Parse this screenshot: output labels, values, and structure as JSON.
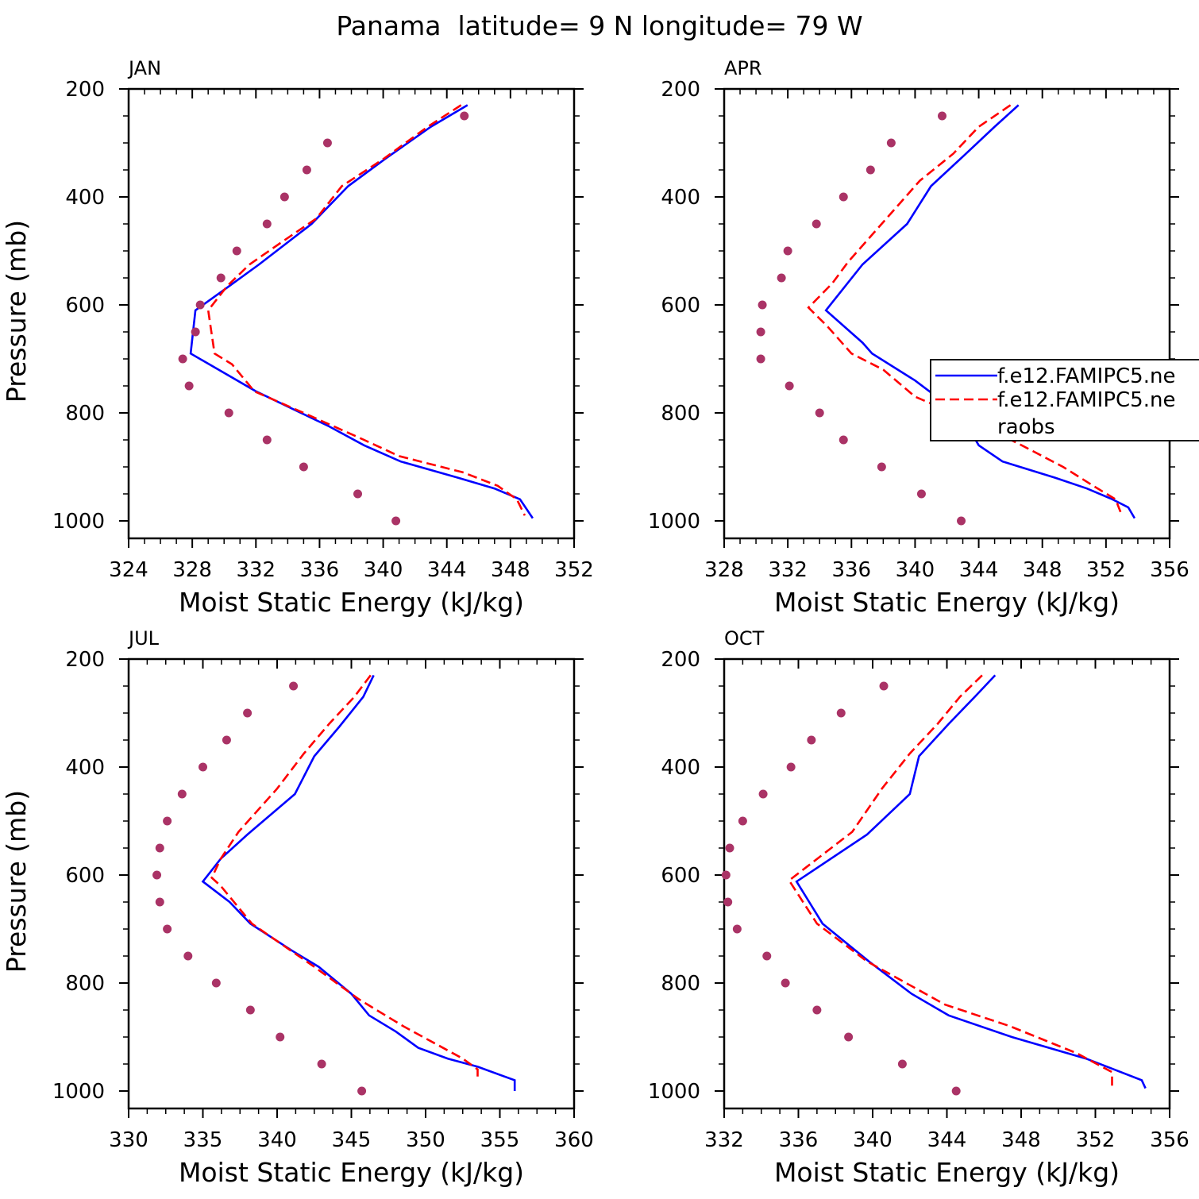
{
  "page_title": "Panama  latitude= 9 N longitude= 79 W",
  "legend": {
    "entries": [
      "f.e12.FAMIPC5.ne",
      "f.e12.FAMIPC5.ne",
      "raobs"
    ],
    "placement": "inside APR panel, right edge, clipped",
    "series_colors": [
      "#0000ff",
      "#ff0000",
      "#aa3366"
    ]
  },
  "chart_data": [
    {
      "type": "line",
      "title": "JAN",
      "xlabel": "Moist Static Energy (kJ/kg)",
      "ylabel": "Pressure (mb)",
      "xlim": [
        324,
        352
      ],
      "ylim": [
        1000,
        200
      ],
      "xticks": [
        324,
        328,
        332,
        336,
        340,
        344,
        348,
        352
      ],
      "yticks": [
        200,
        400,
        600,
        800,
        1000
      ],
      "series": [
        {
          "style": "solid",
          "color": "#0000ff",
          "points": [
            [
              345.3,
              230
            ],
            [
              343.0,
              270
            ],
            [
              340.1,
              330
            ],
            [
              337.8,
              380
            ],
            [
              335.5,
              450
            ],
            [
              332.2,
              525
            ],
            [
              330.1,
              570
            ],
            [
              328.2,
              610
            ],
            [
              327.9,
              690
            ],
            [
              332.0,
              760
            ],
            [
              336.6,
              825
            ],
            [
              338.8,
              860
            ],
            [
              341.1,
              890
            ],
            [
              344.7,
              920
            ],
            [
              347.0,
              940
            ],
            [
              348.6,
              960
            ],
            [
              349.4,
              995
            ]
          ]
        },
        {
          "style": "dashed",
          "color": "#ff0000",
          "points": [
            [
              344.9,
              230
            ],
            [
              342.8,
              270
            ],
            [
              340.0,
              330
            ],
            [
              337.4,
              380
            ],
            [
              335.8,
              440
            ],
            [
              333.8,
              480
            ],
            [
              331.6,
              525
            ],
            [
              330.2,
              565
            ],
            [
              329.0,
              610
            ],
            [
              329.4,
              690
            ],
            [
              330.5,
              710
            ],
            [
              331.9,
              760
            ],
            [
              335.0,
              800
            ],
            [
              338.8,
              850
            ],
            [
              341.0,
              880
            ],
            [
              345.0,
              910
            ],
            [
              347.2,
              935
            ],
            [
              348.4,
              960
            ],
            [
              348.9,
              990
            ]
          ]
        },
        {
          "style": "dots",
          "color": "#aa3366",
          "points": [
            [
              345.1,
              250
            ],
            [
              336.5,
              300
            ],
            [
              335.2,
              350
            ],
            [
              333.8,
              400
            ],
            [
              332.7,
              450
            ],
            [
              330.8,
              500
            ],
            [
              329.8,
              550
            ],
            [
              328.5,
              600
            ],
            [
              328.2,
              650
            ],
            [
              327.4,
              700
            ],
            [
              327.8,
              750
            ],
            [
              330.3,
              800
            ],
            [
              332.7,
              850
            ],
            [
              335.0,
              900
            ],
            [
              338.4,
              950
            ],
            [
              340.8,
              1000
            ]
          ]
        }
      ]
    },
    {
      "type": "line",
      "title": "APR",
      "xlabel": "Moist Static Energy (kJ/kg)",
      "ylabel": "",
      "xlim": [
        328,
        356
      ],
      "ylim": [
        1000,
        200
      ],
      "xticks": [
        328,
        332,
        336,
        340,
        344,
        348,
        352,
        356
      ],
      "yticks": [
        200,
        400,
        600,
        800,
        1000
      ],
      "series": [
        {
          "style": "solid",
          "color": "#0000ff",
          "points": [
            [
              346.5,
              230
            ],
            [
              345.0,
              270
            ],
            [
              343.2,
              320
            ],
            [
              341.0,
              380
            ],
            [
              339.5,
              450
            ],
            [
              336.7,
              525
            ],
            [
              334.4,
              610
            ],
            [
              336.7,
              670
            ],
            [
              337.3,
              690
            ],
            [
              340.0,
              740
            ],
            [
              341.8,
              780
            ],
            [
              342.6,
              800
            ],
            [
              343.6,
              840
            ],
            [
              344.0,
              860
            ],
            [
              345.5,
              890
            ],
            [
              348.8,
              920
            ],
            [
              350.8,
              940
            ],
            [
              352.4,
              960
            ],
            [
              353.4,
              975
            ],
            [
              353.8,
              995
            ]
          ]
        },
        {
          "style": "dashed",
          "color": "#ff0000",
          "points": [
            [
              346.0,
              230
            ],
            [
              344.0,
              270
            ],
            [
              342.4,
              320
            ],
            [
              340.3,
              370
            ],
            [
              338.8,
              420
            ],
            [
              337.0,
              480
            ],
            [
              335.8,
              520
            ],
            [
              334.8,
              560
            ],
            [
              333.3,
              605
            ],
            [
              334.5,
              640
            ],
            [
              336.0,
              690
            ],
            [
              338.0,
              720
            ],
            [
              340.0,
              770
            ],
            [
              344.0,
              820
            ],
            [
              346.7,
              860
            ],
            [
              349.3,
              900
            ],
            [
              351.2,
              935
            ],
            [
              352.6,
              960
            ],
            [
              353.0,
              990
            ]
          ]
        },
        {
          "style": "dots",
          "color": "#aa3366",
          "points": [
            [
              341.7,
              250
            ],
            [
              338.5,
              300
            ],
            [
              337.2,
              350
            ],
            [
              335.5,
              400
            ],
            [
              333.8,
              450
            ],
            [
              332.0,
              500
            ],
            [
              331.6,
              550
            ],
            [
              330.4,
              600
            ],
            [
              330.3,
              650
            ],
            [
              330.3,
              700
            ],
            [
              332.1,
              750
            ],
            [
              334.0,
              800
            ],
            [
              335.5,
              850
            ],
            [
              337.9,
              900
            ],
            [
              340.4,
              950
            ],
            [
              342.9,
              1000
            ]
          ]
        }
      ]
    },
    {
      "type": "line",
      "title": "JUL",
      "xlabel": "Moist Static Energy (kJ/kg)",
      "ylabel": "Pressure (mb)",
      "xlim": [
        330,
        360
      ],
      "ylim": [
        1000,
        200
      ],
      "xticks": [
        330,
        335,
        340,
        345,
        350,
        355,
        360
      ],
      "yticks": [
        200,
        400,
        600,
        800,
        1000
      ],
      "series": [
        {
          "style": "solid",
          "color": "#0000ff",
          "points": [
            [
              346.5,
              230
            ],
            [
              345.8,
              270
            ],
            [
              344.2,
              325
            ],
            [
              342.5,
              380
            ],
            [
              341.2,
              450
            ],
            [
              338.0,
              525
            ],
            [
              336.2,
              570
            ],
            [
              335.0,
              612
            ],
            [
              336.8,
              650
            ],
            [
              338.2,
              690
            ],
            [
              341.0,
              740
            ],
            [
              342.8,
              770
            ],
            [
              345.0,
              820
            ],
            [
              346.2,
              860
            ],
            [
              348.0,
              890
            ],
            [
              349.5,
              920
            ],
            [
              351.5,
              940
            ],
            [
              353.5,
              955
            ],
            [
              356.0,
              980
            ],
            [
              356.0,
              1000
            ]
          ]
        },
        {
          "style": "dashed",
          "color": "#ff0000",
          "points": [
            [
              346.3,
              230
            ],
            [
              345.2,
              270
            ],
            [
              343.5,
              320
            ],
            [
              341.8,
              375
            ],
            [
              340.0,
              440
            ],
            [
              337.4,
              520
            ],
            [
              336.2,
              570
            ],
            [
              335.6,
              605
            ],
            [
              336.2,
              620
            ],
            [
              338.3,
              690
            ],
            [
              342.5,
              770
            ],
            [
              345.5,
              830
            ],
            [
              348.5,
              880
            ],
            [
              350.5,
              910
            ],
            [
              352.5,
              940
            ],
            [
              353.5,
              960
            ],
            [
              353.5,
              980
            ]
          ]
        },
        {
          "style": "dots",
          "color": "#aa3366",
          "points": [
            [
              341.1,
              250
            ],
            [
              338.0,
              300
            ],
            [
              336.6,
              350
            ],
            [
              335.0,
              400
            ],
            [
              333.6,
              450
            ],
            [
              332.6,
              500
            ],
            [
              332.1,
              550
            ],
            [
              331.9,
              600
            ],
            [
              332.1,
              650
            ],
            [
              332.6,
              700
            ],
            [
              334.0,
              750
            ],
            [
              335.9,
              800
            ],
            [
              338.2,
              850
            ],
            [
              340.2,
              900
            ],
            [
              343.0,
              950
            ],
            [
              345.7,
              1000
            ]
          ]
        }
      ]
    },
    {
      "type": "line",
      "title": "OCT",
      "xlabel": "Moist Static Energy (kJ/kg)",
      "ylabel": "",
      "xlim": [
        332,
        356
      ],
      "ylim": [
        1000,
        200
      ],
      "xticks": [
        332,
        336,
        340,
        344,
        348,
        352,
        356
      ],
      "yticks": [
        200,
        400,
        600,
        800,
        1000
      ],
      "series": [
        {
          "style": "solid",
          "color": "#0000ff",
          "points": [
            [
              346.6,
              230
            ],
            [
              345.5,
              270
            ],
            [
              344.1,
              320
            ],
            [
              342.5,
              380
            ],
            [
              342.0,
              450
            ],
            [
              339.7,
              525
            ],
            [
              335.9,
              612
            ],
            [
              337.3,
              690
            ],
            [
              339.8,
              760
            ],
            [
              342.1,
              820
            ],
            [
              344.1,
              860
            ],
            [
              347.5,
              900
            ],
            [
              351.5,
              940
            ],
            [
              354.5,
              980
            ],
            [
              354.7,
              995
            ]
          ]
        },
        {
          "style": "dashed",
          "color": "#ff0000",
          "points": [
            [
              345.9,
              230
            ],
            [
              344.7,
              270
            ],
            [
              343.5,
              320
            ],
            [
              342.0,
              375
            ],
            [
              340.5,
              440
            ],
            [
              338.9,
              520
            ],
            [
              335.5,
              610
            ],
            [
              337.0,
              690
            ],
            [
              339.7,
              760
            ],
            [
              343.9,
              840
            ],
            [
              347.4,
              880
            ],
            [
              351.0,
              930
            ],
            [
              352.9,
              965
            ],
            [
              352.9,
              990
            ]
          ]
        },
        {
          "style": "dots",
          "color": "#aa3366",
          "points": [
            [
              340.6,
              250
            ],
            [
              338.3,
              300
            ],
            [
              336.7,
              350
            ],
            [
              335.6,
              400
            ],
            [
              334.1,
              450
            ],
            [
              333.0,
              500
            ],
            [
              332.3,
              550
            ],
            [
              332.1,
              600
            ],
            [
              332.2,
              650
            ],
            [
              332.7,
              700
            ],
            [
              334.3,
              750
            ],
            [
              335.3,
              800
            ],
            [
              337.0,
              850
            ],
            [
              338.7,
              900
            ],
            [
              341.6,
              950
            ],
            [
              344.5,
              1000
            ]
          ]
        }
      ]
    }
  ]
}
